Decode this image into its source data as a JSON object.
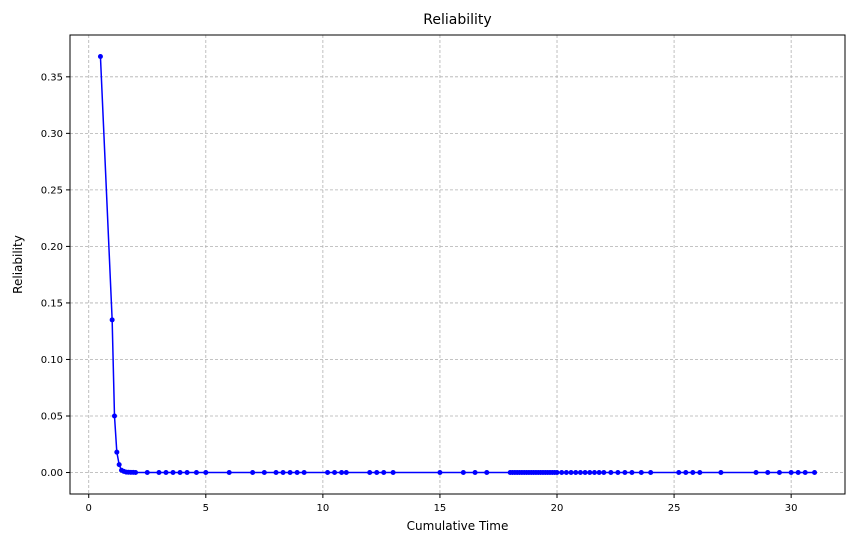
{
  "chart_data": {
    "type": "line",
    "title": "Reliability",
    "xlabel": "Cumulative Time",
    "ylabel": "Reliability",
    "xlim": [
      -0.8,
      32.3
    ],
    "ylim": [
      -0.019,
      0.387
    ],
    "xticks": [
      0,
      5,
      10,
      15,
      20,
      25,
      30
    ],
    "xtick_labels": [
      "0",
      "5",
      "10",
      "15",
      "20",
      "25",
      "30"
    ],
    "yticks": [
      0.0,
      0.05,
      0.1,
      0.15,
      0.2,
      0.25,
      0.3,
      0.35
    ],
    "ytick_labels": [
      "0.00",
      "0.05",
      "0.10",
      "0.15",
      "0.20",
      "0.25",
      "0.30",
      "0.35"
    ],
    "grid": true,
    "legend": "none",
    "series": [
      {
        "color": "#0000ff",
        "marker": "circle",
        "x": [
          0.5,
          1.0,
          1.1,
          1.2,
          1.3,
          1.4,
          1.5,
          1.6,
          1.7,
          1.8,
          1.9,
          2.0,
          2.5,
          3.0,
          3.3,
          3.6,
          3.9,
          4.2,
          4.6,
          5.0,
          6.0,
          7.0,
          7.5,
          8.0,
          8.3,
          8.6,
          8.9,
          9.2,
          10.2,
          10.5,
          10.8,
          11.0,
          12.0,
          12.3,
          12.6,
          13.0,
          15.0,
          16.0,
          16.5,
          17.0,
          18.0,
          18.1,
          18.2,
          18.3,
          18.4,
          18.5,
          18.6,
          18.7,
          18.8,
          18.9,
          19.0,
          19.1,
          19.2,
          19.3,
          19.4,
          19.5,
          19.6,
          19.7,
          19.8,
          19.9,
          20.0,
          20.2,
          20.4,
          20.6,
          20.8,
          21.0,
          21.2,
          21.4,
          21.6,
          21.8,
          22.0,
          22.3,
          22.6,
          22.9,
          23.2,
          23.6,
          24.0,
          25.2,
          25.5,
          25.8,
          26.1,
          27.0,
          28.5,
          29.0,
          29.5,
          30.0,
          30.3,
          30.6,
          31.0
        ],
        "y": [
          0.368,
          0.135,
          0.05,
          0.018,
          0.007,
          0.002,
          0.001,
          0.0004,
          0.0002,
          0.0001,
          0.0001,
          0.0,
          0.0,
          0.0,
          0.0,
          0.0,
          0.0,
          0.0,
          0.0,
          0.0,
          0.0,
          0.0,
          0.0,
          0.0,
          0.0,
          0.0,
          0.0,
          0.0,
          0.0,
          0.0,
          0.0,
          0.0,
          0.0,
          0.0,
          0.0,
          0.0,
          0.0,
          0.0,
          0.0,
          0.0,
          0.0,
          0.0,
          0.0,
          0.0,
          0.0,
          0.0,
          0.0,
          0.0,
          0.0,
          0.0,
          0.0,
          0.0,
          0.0,
          0.0,
          0.0,
          0.0,
          0.0,
          0.0,
          0.0,
          0.0,
          0.0,
          0.0,
          0.0,
          0.0,
          0.0,
          0.0,
          0.0,
          0.0,
          0.0,
          0.0,
          0.0,
          0.0,
          0.0,
          0.0,
          0.0,
          0.0,
          0.0,
          0.0,
          0.0,
          0.0,
          0.0,
          0.0,
          0.0,
          0.0,
          0.0,
          0.0,
          0.0,
          0.0,
          0.0
        ]
      }
    ]
  }
}
